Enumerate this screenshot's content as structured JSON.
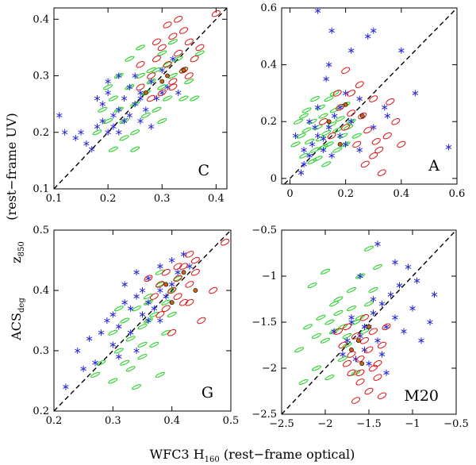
{
  "figure": {
    "xlabel": "WFC3  H",
    "xlabel_sub": "160",
    "xlabel_tail": "  (rest−frame optical)",
    "ylabel_left": "ACS",
    "ylabel_left_sub": "deg",
    "ylabel_mid": "z",
    "ylabel_mid_sub": "850",
    "ylabel_tail": "(rest−frame UV)",
    "colors": {
      "star": "#2626d9",
      "ellipse_red": "#e01010",
      "ellipse_green": "#19d219",
      "dot": "#c86414"
    }
  },
  "chart_data": [
    {
      "type": "scatter",
      "panel": "C",
      "xlim": [
        0.1,
        0.42
      ],
      "ylim": [
        0.1,
        0.42
      ],
      "xticks": [
        "0.1",
        "0.2",
        "0.3",
        "0.4"
      ],
      "xtick_values": [
        0.1,
        0.2,
        0.3,
        0.4
      ],
      "yticks": [
        "0.1",
        "0.2",
        "0.3",
        "0.4"
      ],
      "ytick_values": [
        0.1,
        0.2,
        0.3,
        0.4
      ],
      "one_to_one_line": true,
      "series": [
        {
          "name": "blue-stars",
          "marker": "star",
          "x": [
            0.11,
            0.14,
            0.16,
            0.17,
            0.18,
            0.19,
            0.19,
            0.2,
            0.2,
            0.21,
            0.21,
            0.22,
            0.22,
            0.23,
            0.23,
            0.24,
            0.24,
            0.25,
            0.25,
            0.26,
            0.26,
            0.27,
            0.28,
            0.29,
            0.3,
            0.3,
            0.31,
            0.32,
            0.2,
            0.18,
            0.22,
            0.26,
            0.15,
            0.28,
            0.33,
            0.12
          ],
          "y": [
            0.23,
            0.19,
            0.18,
            0.17,
            0.21,
            0.22,
            0.25,
            0.2,
            0.27,
            0.23,
            0.21,
            0.24,
            0.2,
            0.26,
            0.22,
            0.28,
            0.23,
            0.25,
            0.3,
            0.22,
            0.27,
            0.24,
            0.29,
            0.26,
            0.31,
            0.27,
            0.28,
            0.33,
            0.29,
            0.26,
            0.3,
            0.26,
            0.2,
            0.21,
            0.27,
            0.2
          ]
        },
        {
          "name": "green-ellipses",
          "marker": "green-ellipse",
          "x": [
            0.18,
            0.19,
            0.2,
            0.21,
            0.22,
            0.23,
            0.24,
            0.25,
            0.26,
            0.27,
            0.28,
            0.29,
            0.3,
            0.31,
            0.32,
            0.33,
            0.34,
            0.35,
            0.22,
            0.24,
            0.26,
            0.28,
            0.3,
            0.32,
            0.2,
            0.23,
            0.25,
            0.27,
            0.29,
            0.31,
            0.34,
            0.36,
            0.21,
            0.25,
            0.3,
            0.37
          ],
          "y": [
            0.2,
            0.24,
            0.22,
            0.26,
            0.24,
            0.22,
            0.28,
            0.25,
            0.3,
            0.27,
            0.29,
            0.31,
            0.28,
            0.32,
            0.3,
            0.33,
            0.31,
            0.29,
            0.3,
            0.33,
            0.35,
            0.31,
            0.34,
            0.36,
            0.28,
            0.19,
            0.2,
            0.23,
            0.24,
            0.26,
            0.26,
            0.26,
            0.17,
            0.17,
            0.22,
            0.34
          ]
        },
        {
          "name": "red-ellipses",
          "marker": "red-ellipse",
          "x": [
            0.26,
            0.28,
            0.29,
            0.3,
            0.31,
            0.32,
            0.33,
            0.34,
            0.35,
            0.3,
            0.32,
            0.34,
            0.36,
            0.28,
            0.31,
            0.33,
            0.37,
            0.4,
            0.29,
            0.35,
            0.32,
            0.26
          ],
          "y": [
            0.28,
            0.3,
            0.33,
            0.35,
            0.32,
            0.37,
            0.34,
            0.38,
            0.36,
            0.27,
            0.29,
            0.31,
            0.33,
            0.26,
            0.39,
            0.4,
            0.35,
            0.41,
            0.36,
            0.3,
            0.28,
            0.32
          ]
        },
        {
          "name": "filled-dots",
          "marker": "dot",
          "x": [
            0.27,
            0.31,
            0.34,
            0.3
          ],
          "y": [
            0.27,
            0.3,
            0.31,
            0.29
          ]
        }
      ]
    },
    {
      "type": "scatter",
      "panel": "A",
      "xlim": [
        -0.03,
        0.6
      ],
      "ylim": [
        -0.02,
        0.6
      ],
      "xticks": [
        "0",
        "0.2",
        "0.4",
        "0.6"
      ],
      "xtick_values": [
        0,
        0.2,
        0.4,
        0.6
      ],
      "yticks": [
        "0",
        "0.2",
        "0.4",
        "0.6"
      ],
      "ytick_values": [
        0,
        0.2,
        0.4,
        0.6
      ],
      "one_to_one_line": true,
      "series": [
        {
          "name": "blue-stars",
          "marker": "star",
          "x": [
            0.02,
            0.05,
            0.07,
            0.08,
            0.1,
            0.1,
            0.12,
            0.13,
            0.14,
            0.15,
            0.16,
            0.18,
            0.2,
            0.22,
            0.25,
            0.28,
            0.3,
            0.34,
            0.4,
            0.45,
            0.57,
            0.1,
            0.15,
            0.2,
            0.05,
            0.09,
            0.12,
            0.18,
            0.25,
            0.3,
            0.14,
            0.22,
            0.35,
            0.04,
            0.07
          ],
          "y": [
            0.15,
            0.05,
            0.2,
            0.12,
            0.25,
            0.59,
            0.1,
            0.35,
            0.18,
            0.52,
            0.22,
            0.15,
            0.3,
            0.2,
            0.28,
            0.5,
            0.18,
            0.25,
            0.45,
            0.3,
            0.11,
            0.15,
            0.08,
            0.12,
            0.1,
            0.18,
            0.14,
            0.25,
            0.1,
            0.52,
            0.4,
            0.45,
            0.22,
            0.02,
            0.08
          ]
        },
        {
          "name": "green-ellipses",
          "marker": "green-ellipse",
          "x": [
            0.02,
            0.04,
            0.05,
            0.06,
            0.07,
            0.08,
            0.09,
            0.1,
            0.11,
            0.12,
            0.13,
            0.14,
            0.15,
            0.16,
            0.17,
            0.18,
            0.19,
            0.2,
            0.05,
            0.08,
            0.11,
            0.14,
            0.17,
            0.2,
            0.22,
            0.03,
            0.06,
            0.1,
            0.13,
            0.16,
            0.21,
            0.24,
            0.09,
            0.12
          ],
          "y": [
            0.12,
            0.15,
            0.08,
            0.17,
            0.13,
            0.2,
            0.1,
            0.18,
            0.14,
            0.22,
            0.16,
            0.12,
            0.19,
            0.24,
            0.17,
            0.21,
            0.15,
            0.26,
            0.22,
            0.06,
            0.25,
            0.28,
            0.1,
            0.12,
            0.2,
            0.2,
            0.24,
            0.07,
            0.05,
            0.3,
            0.18,
            0.15,
            0.28,
            0.11
          ]
        },
        {
          "name": "red-ellipses",
          "marker": "red-ellipse",
          "x": [
            0.12,
            0.15,
            0.18,
            0.2,
            0.22,
            0.24,
            0.26,
            0.28,
            0.3,
            0.32,
            0.35,
            0.38,
            0.4,
            0.2,
            0.25,
            0.3,
            0.33,
            0.27,
            0.22,
            0.36,
            0.31,
            0.17
          ],
          "y": [
            0.2,
            0.15,
            0.25,
            0.18,
            0.3,
            0.12,
            0.22,
            0.17,
            0.28,
            0.1,
            0.15,
            0.2,
            0.12,
            0.38,
            0.33,
            0.08,
            0.02,
            0.05,
            0.23,
            0.27,
            0.13,
            0.3
          ]
        },
        {
          "name": "filled-dots",
          "marker": "dot",
          "x": [
            0.14,
            0.2,
            0.26,
            0.18
          ],
          "y": [
            0.2,
            0.26,
            0.22,
            0.12
          ]
        }
      ]
    },
    {
      "type": "scatter",
      "panel": "G",
      "xlim": [
        0.2,
        0.5
      ],
      "ylim": [
        0.2,
        0.5
      ],
      "xticks": [
        "0.2",
        "0.3",
        "0.4",
        "0.5"
      ],
      "xtick_values": [
        0.2,
        0.3,
        0.4,
        0.5
      ],
      "yticks": [
        "0.2",
        "0.3",
        "0.4",
        "0.5"
      ],
      "ytick_values": [
        0.2,
        0.3,
        0.4,
        0.5
      ],
      "one_to_one_line": true,
      "series": [
        {
          "name": "blue-stars",
          "marker": "star",
          "x": [
            0.22,
            0.24,
            0.26,
            0.28,
            0.29,
            0.3,
            0.31,
            0.32,
            0.32,
            0.33,
            0.34,
            0.34,
            0.35,
            0.35,
            0.36,
            0.36,
            0.37,
            0.38,
            0.38,
            0.39,
            0.4,
            0.4,
            0.41,
            0.42,
            0.43,
            0.3,
            0.33,
            0.36,
            0.27,
            0.31,
            0.34,
            0.38,
            0.25
          ],
          "y": [
            0.24,
            0.3,
            0.32,
            0.33,
            0.35,
            0.36,
            0.34,
            0.38,
            0.41,
            0.37,
            0.39,
            0.43,
            0.36,
            0.4,
            0.38,
            0.42,
            0.37,
            0.4,
            0.44,
            0.39,
            0.41,
            0.45,
            0.43,
            0.46,
            0.44,
            0.31,
            0.33,
            0.35,
            0.28,
            0.29,
            0.3,
            0.35,
            0.27
          ]
        },
        {
          "name": "green-ellipses",
          "marker": "green-ellipse",
          "x": [
            0.28,
            0.3,
            0.31,
            0.32,
            0.33,
            0.34,
            0.35,
            0.36,
            0.37,
            0.38,
            0.39,
            0.4,
            0.41,
            0.33,
            0.35,
            0.37,
            0.39,
            0.36,
            0.34,
            0.38,
            0.3,
            0.32,
            0.35,
            0.4,
            0.27,
            0.31,
            0.36,
            0.38
          ],
          "y": [
            0.28,
            0.33,
            0.3,
            0.35,
            0.32,
            0.37,
            0.34,
            0.39,
            0.36,
            0.41,
            0.38,
            0.4,
            0.42,
            0.27,
            0.29,
            0.31,
            0.33,
            0.35,
            0.24,
            0.26,
            0.25,
            0.28,
            0.31,
            0.36,
            0.26,
            0.37,
            0.38,
            0.43
          ]
        },
        {
          "name": "red-ellipses",
          "marker": "red-ellipse",
          "x": [
            0.37,
            0.38,
            0.39,
            0.4,
            0.41,
            0.42,
            0.43,
            0.44,
            0.39,
            0.41,
            0.43,
            0.42,
            0.45,
            0.47,
            0.4,
            0.38,
            0.44,
            0.49,
            0.41,
            0.36,
            0.43
          ],
          "y": [
            0.39,
            0.41,
            0.43,
            0.4,
            0.42,
            0.44,
            0.41,
            0.43,
            0.37,
            0.39,
            0.46,
            0.38,
            0.35,
            0.4,
            0.33,
            0.36,
            0.45,
            0.48,
            0.44,
            0.42,
            0.38
          ]
        },
        {
          "name": "filled-dots",
          "marker": "dot",
          "x": [
            0.39,
            0.42,
            0.44,
            0.4
          ],
          "y": [
            0.41,
            0.43,
            0.4,
            0.38
          ]
        }
      ]
    },
    {
      "type": "scatter",
      "panel": "M20",
      "xlim": [
        -2.5,
        -0.5
      ],
      "ylim": [
        -2.5,
        -0.5
      ],
      "xticks": [
        "−2.5",
        "−2",
        "−1.5",
        "−1",
        "−0.5"
      ],
      "xtick_values": [
        -2.5,
        -2,
        -1.5,
        -1,
        -0.5
      ],
      "yticks": [
        "−2.5",
        "−2",
        "−1.5",
        "−1",
        "−0.5"
      ],
      "ytick_values": [
        -2.5,
        -2,
        -1.5,
        -1,
        -0.5
      ],
      "one_to_one_line": true,
      "series": [
        {
          "name": "blue-stars",
          "marker": "star",
          "x": [
            -1.9,
            -1.8,
            -1.75,
            -1.7,
            -1.65,
            -1.6,
            -1.55,
            -1.5,
            -1.45,
            -1.4,
            -1.35,
            -1.3,
            -1.25,
            -1.2,
            -1.15,
            -1.1,
            -1.05,
            -1.0,
            -0.9,
            -0.8,
            -0.75,
            -1.4,
            -1.6,
            -1.5,
            -1.3,
            -1.7,
            -1.45,
            -1.2,
            -0.95,
            -1.55,
            -1.35
          ],
          "y": [
            -1.6,
            -1.85,
            -1.7,
            -1.5,
            -1.9,
            -1.65,
            -1.8,
            -1.55,
            -1.4,
            -1.7,
            -1.3,
            -1.55,
            -1.2,
            -1.45,
            -1.1,
            -1.6,
            -0.9,
            -1.35,
            -1.7,
            -1.5,
            -1.2,
            -0.65,
            -1.0,
            -1.95,
            -2.05,
            -1.45,
            -1.25,
            -0.85,
            -1.05,
            -1.55,
            -1.85
          ]
        },
        {
          "name": "green-ellipses",
          "marker": "green-ellipse",
          "x": [
            -2.3,
            -2.2,
            -2.1,
            -2.05,
            -2.0,
            -1.95,
            -1.9,
            -1.85,
            -1.8,
            -1.75,
            -1.7,
            -1.65,
            -1.6,
            -1.55,
            -1.5,
            -2.15,
            -2.0,
            -1.85,
            -1.7,
            -1.6,
            -1.5,
            -1.4,
            -2.1,
            -1.95,
            -1.8,
            -1.65,
            -2.25,
            -1.45,
            -1.75,
            -1.9
          ],
          "y": [
            -1.8,
            -1.55,
            -1.65,
            -1.45,
            -1.7,
            -1.5,
            -1.6,
            -1.4,
            -1.55,
            -1.65,
            -1.35,
            -1.5,
            -1.45,
            -1.6,
            -1.3,
            -1.1,
            -0.95,
            -1.25,
            -1.15,
            -1.0,
            -0.7,
            -0.9,
            -2.0,
            -2.1,
            -1.9,
            -2.05,
            -2.15,
            -1.15,
            -1.75,
            -1.3
          ]
        },
        {
          "name": "red-ellipses",
          "marker": "red-ellipse",
          "x": [
            -1.85,
            -1.8,
            -1.75,
            -1.7,
            -1.65,
            -1.6,
            -1.55,
            -1.5,
            -1.45,
            -1.4,
            -1.35,
            -1.3,
            -1.7,
            -1.6,
            -1.5,
            -1.4,
            -1.65,
            -1.55,
            -1.75,
            -1.45,
            -1.35,
            -1.6
          ],
          "y": [
            -1.6,
            -1.75,
            -1.55,
            -1.85,
            -1.65,
            -1.9,
            -1.7,
            -1.8,
            -1.6,
            -1.95,
            -1.75,
            -1.55,
            -2.05,
            -2.15,
            -2.25,
            -2.1,
            -2.35,
            -1.45,
            -1.95,
            -2.0,
            -2.3,
            -2.05
          ]
        },
        {
          "name": "filled-dots",
          "marker": "dot",
          "x": [
            -1.62,
            -1.5,
            -1.7,
            -1.58
          ],
          "y": [
            -1.7,
            -1.55,
            -1.8,
            -1.95
          ]
        }
      ]
    }
  ]
}
